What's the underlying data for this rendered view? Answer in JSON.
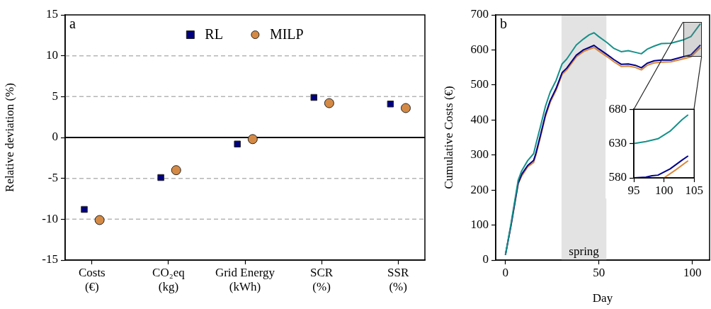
{
  "chart_data": [
    {
      "type": "scatter",
      "annotations": [
        "a"
      ],
      "ylabel": "Relative deviation (%)",
      "categories": [
        "Costs\n(€)",
        "CO₂eq\n(kg)",
        "Grid Energy\n(kWh)",
        "SCR\n(%)",
        "SSR\n(%)"
      ],
      "series": [
        {
          "name": "RL",
          "color": "#000080",
          "marker": "square",
          "values": [
            -8.8,
            -4.9,
            -0.8,
            4.9,
            4.1
          ]
        },
        {
          "name": "MILP",
          "color": "#d48a45",
          "marker": "circle",
          "values": [
            -10.1,
            -4.0,
            -0.2,
            4.2,
            3.6
          ]
        }
      ],
      "ylim": [
        -15,
        15
      ],
      "yticks": [
        -15,
        -10,
        -5,
        0,
        5,
        10,
        15
      ],
      "grid": "y",
      "legend": "top",
      "ref_lines": [
        {
          "axis": "y",
          "value": 0,
          "color": "#000000"
        }
      ]
    },
    {
      "type": "line",
      "annotations": [
        "b"
      ],
      "xlabel": "Day",
      "ylabel": "Cumulative Costs (€)",
      "x": [
        0,
        3,
        6.8,
        8.7,
        11.9,
        15.1,
        16.3,
        18.9,
        21.4,
        23.9,
        27.1,
        30.3,
        32.8,
        37.9,
        41.7,
        44.8,
        47.4,
        49.9,
        54.3,
        58.1,
        61.9,
        65.7,
        69.5,
        72.7,
        75.8,
        79.6,
        83.4,
        88.5,
        94.8,
        99.2,
        104.3
      ],
      "series": [
        {
          "color": "#17918a",
          "values": [
            15,
            105,
            228,
            255,
            284,
            304,
            331,
            385,
            439,
            479,
            513,
            560,
            574,
            614,
            631,
            643,
            649,
            638,
            621,
            604,
            595,
            598,
            593,
            589,
            602,
            611,
            618,
            619,
            628,
            638,
            675
          ]
        },
        {
          "color": "#00008b",
          "values": [
            15,
            100,
            220,
            245,
            270,
            285,
            305,
            360,
            415,
            455,
            490,
            535,
            548,
            585,
            600,
            607,
            613,
            603,
            587,
            572,
            559,
            560,
            556,
            549,
            562,
            569,
            571,
            571,
            580,
            586,
            614
          ]
        },
        {
          "color": "#d9883d",
          "values": [
            15,
            100,
            218,
            240,
            266,
            279,
            300,
            355,
            410,
            450,
            485,
            530,
            543,
            580,
            595,
            602,
            607,
            597,
            581,
            566,
            553,
            554,
            550,
            543,
            556,
            563,
            565,
            566,
            574,
            580,
            607
          ]
        }
      ],
      "xlim": [
        -5.2,
        109.2
      ],
      "xticks": [
        0,
        50,
        100
      ],
      "ylim": [
        0,
        700
      ],
      "yticks": [
        0,
        100,
        200,
        300,
        400,
        500,
        600,
        700
      ],
      "bands": [
        {
          "axis": "x",
          "from": 30,
          "to": 54,
          "label": "spring",
          "color": "#e3e3e3"
        }
      ]
    },
    {
      "type": "line",
      "series": [
        {
          "color": "#17918a",
          "x": [
            95,
            97,
            99,
            101,
            103,
            104
          ],
          "values": [
            630,
            633,
            637,
            648,
            665,
            672
          ]
        },
        {
          "color": "#00008b",
          "x": [
            95,
            97,
            98,
            99,
            101,
            103,
            104
          ],
          "values": [
            580,
            581,
            583,
            584,
            593,
            606,
            612
          ]
        },
        {
          "color": "#d9883d",
          "x": [
            100,
            102,
            104
          ],
          "values": [
            580,
            592,
            605
          ]
        }
      ],
      "xlim": [
        95,
        105
      ],
      "xticks": [
        95,
        100,
        105
      ],
      "ylim": [
        580,
        680
      ],
      "yticks": [
        580,
        630,
        680
      ]
    }
  ]
}
